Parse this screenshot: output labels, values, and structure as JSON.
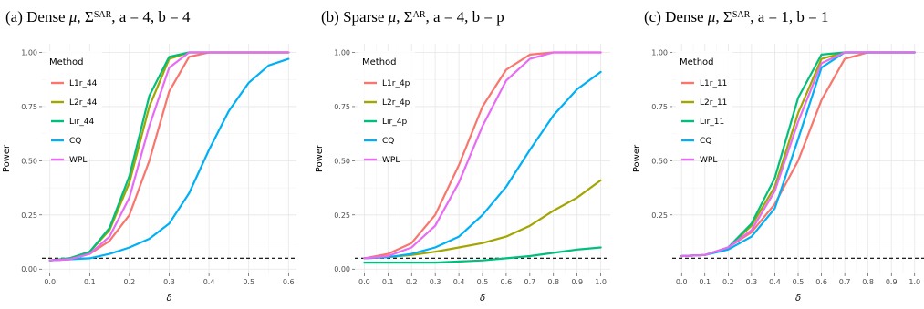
{
  "chart_data": [
    {
      "type": "line",
      "title": "(a) Dense μ, Σ^SAR, a = 4, b = 4",
      "title_parts": {
        "prefix": "(a) Dense ",
        "mu": "μ",
        "comma1": ", ",
        "sigma": "Σ",
        "sup": "SAR",
        "rest": ", a = 4, b = 4"
      },
      "xlabel": "δ",
      "ylabel": "Power",
      "xlim": [
        -0.02,
        0.62
      ],
      "ylim": [
        -0.02,
        1.04
      ],
      "xticks": [
        0.0,
        0.1,
        0.2,
        0.3,
        0.4,
        0.5,
        0.6
      ],
      "xtick_labels": [
        "0.0",
        "0.1",
        "0.2",
        "0.3",
        "0.4",
        "0.5",
        "0.6"
      ],
      "yticks": [
        0.0,
        0.25,
        0.5,
        0.75,
        1.0
      ],
      "ytick_labels": [
        "0.00",
        "0.25",
        "0.50",
        "0.75",
        "1.00"
      ],
      "grid": true,
      "legend_position": "top-left",
      "legend_title": "Method",
      "reference_line": {
        "y": 0.05,
        "style": "dashed"
      },
      "series": [
        {
          "name": "L1r_44",
          "color": "#F8766D",
          "x": [
            0.0,
            0.05,
            0.1,
            0.15,
            0.2,
            0.25,
            0.3,
            0.35,
            0.4,
            0.45,
            0.5,
            0.55,
            0.6
          ],
          "y": [
            0.04,
            0.045,
            0.07,
            0.13,
            0.25,
            0.5,
            0.82,
            0.98,
            1.0,
            1.0,
            1.0,
            1.0,
            1.0
          ]
        },
        {
          "name": "L2r_44",
          "color": "#A3A500",
          "x": [
            0.0,
            0.05,
            0.1,
            0.15,
            0.2,
            0.25,
            0.3,
            0.35,
            0.4,
            0.45,
            0.5,
            0.55,
            0.6
          ],
          "y": [
            0.04,
            0.05,
            0.08,
            0.18,
            0.4,
            0.75,
            0.97,
            1.0,
            1.0,
            1.0,
            1.0,
            1.0,
            1.0
          ]
        },
        {
          "name": "Lir_44",
          "color": "#00BF7D",
          "x": [
            0.0,
            0.05,
            0.1,
            0.15,
            0.2,
            0.25,
            0.3,
            0.35,
            0.4,
            0.45,
            0.5,
            0.55,
            0.6
          ],
          "y": [
            0.04,
            0.05,
            0.08,
            0.19,
            0.43,
            0.8,
            0.98,
            1.0,
            1.0,
            1.0,
            1.0,
            1.0,
            1.0
          ]
        },
        {
          "name": "CQ",
          "color": "#00B0F6",
          "x": [
            0.0,
            0.05,
            0.1,
            0.15,
            0.2,
            0.25,
            0.3,
            0.35,
            0.4,
            0.45,
            0.5,
            0.55,
            0.6
          ],
          "y": [
            0.04,
            0.045,
            0.05,
            0.07,
            0.1,
            0.14,
            0.21,
            0.35,
            0.55,
            0.73,
            0.86,
            0.94,
            0.97
          ]
        },
        {
          "name": "WPL",
          "color": "#E76BF3",
          "x": [
            0.0,
            0.05,
            0.1,
            0.15,
            0.2,
            0.25,
            0.3,
            0.35,
            0.4,
            0.45,
            0.5,
            0.55,
            0.6
          ],
          "y": [
            0.04,
            0.045,
            0.07,
            0.15,
            0.33,
            0.66,
            0.93,
            1.0,
            1.0,
            1.0,
            1.0,
            1.0,
            1.0
          ]
        }
      ]
    },
    {
      "type": "line",
      "title": "(b) Sparse μ, Σ^AR, a = 4, b = p",
      "title_parts": {
        "prefix": "(b) Sparse ",
        "mu": "μ",
        "comma1": ", ",
        "sigma": "Σ",
        "sup": "AR",
        "rest": ", a = 4, b = p"
      },
      "xlabel": "δ",
      "ylabel": "Power",
      "xlim": [
        -0.04,
        1.04
      ],
      "ylim": [
        -0.02,
        1.04
      ],
      "xticks": [
        0.0,
        0.1,
        0.2,
        0.3,
        0.4,
        0.5,
        0.6,
        0.7,
        0.8,
        0.9,
        1.0
      ],
      "xtick_labels": [
        "0.0",
        "0.1",
        "0.2",
        "0.3",
        "0.4",
        "0.5",
        "0.6",
        "0.7",
        "0.8",
        "0.9",
        "1.0"
      ],
      "yticks": [
        0.0,
        0.25,
        0.5,
        0.75,
        1.0
      ],
      "ytick_labels": [
        "0.00",
        "0.25",
        "0.50",
        "0.75",
        "1.00"
      ],
      "grid": true,
      "legend_position": "top-left",
      "legend_title": "Method",
      "reference_line": {
        "y": 0.05,
        "style": "dashed"
      },
      "series": [
        {
          "name": "L1r_4p",
          "color": "#F8766D",
          "x": [
            0.0,
            0.1,
            0.2,
            0.3,
            0.4,
            0.5,
            0.6,
            0.7,
            0.8,
            0.9,
            1.0
          ],
          "y": [
            0.05,
            0.07,
            0.12,
            0.25,
            0.48,
            0.75,
            0.92,
            0.99,
            1.0,
            1.0,
            1.0
          ]
        },
        {
          "name": "L2r_4p",
          "color": "#A3A500",
          "x": [
            0.0,
            0.1,
            0.2,
            0.3,
            0.4,
            0.5,
            0.6,
            0.7,
            0.8,
            0.9,
            1.0
          ],
          "y": [
            0.05,
            0.055,
            0.065,
            0.08,
            0.1,
            0.12,
            0.15,
            0.2,
            0.27,
            0.33,
            0.41
          ]
        },
        {
          "name": "Lir_4p",
          "color": "#00BF7D",
          "x": [
            0.0,
            0.1,
            0.2,
            0.3,
            0.4,
            0.5,
            0.6,
            0.7,
            0.8,
            0.9,
            1.0
          ],
          "y": [
            0.03,
            0.03,
            0.03,
            0.03,
            0.035,
            0.04,
            0.05,
            0.06,
            0.075,
            0.09,
            0.1
          ]
        },
        {
          "name": "CQ",
          "color": "#00B0F6",
          "x": [
            0.0,
            0.1,
            0.2,
            0.3,
            0.4,
            0.5,
            0.6,
            0.7,
            0.8,
            0.9,
            1.0
          ],
          "y": [
            0.05,
            0.055,
            0.07,
            0.1,
            0.15,
            0.25,
            0.38,
            0.55,
            0.71,
            0.83,
            0.91
          ]
        },
        {
          "name": "WPL",
          "color": "#E76BF3",
          "x": [
            0.0,
            0.1,
            0.2,
            0.3,
            0.4,
            0.5,
            0.6,
            0.7,
            0.8,
            0.9,
            1.0
          ],
          "y": [
            0.05,
            0.06,
            0.1,
            0.2,
            0.4,
            0.66,
            0.87,
            0.97,
            1.0,
            1.0,
            1.0
          ]
        }
      ]
    },
    {
      "type": "line",
      "title": "(c) Dense μ, Σ^SAR, a = 1, b = 1",
      "title_parts": {
        "prefix": "(c) Dense ",
        "mu": "μ",
        "comma1": ", ",
        "sigma": "Σ",
        "sup": "SAR",
        "rest": ", a = 1, b = 1"
      },
      "xlabel": "δ",
      "ylabel": "Power",
      "xlim": [
        -0.04,
        1.04
      ],
      "ylim": [
        -0.02,
        1.04
      ],
      "xticks": [
        0.0,
        0.1,
        0.2,
        0.3,
        0.4,
        0.5,
        0.6,
        0.7,
        0.8,
        0.9,
        1.0
      ],
      "xtick_labels": [
        "0.0",
        "0.1",
        "0.2",
        "0.3",
        "0.4",
        "0.5",
        "0.6",
        "0.7",
        "0.8",
        "0.9",
        "1.0"
      ],
      "yticks": [
        0.25,
        0.5,
        0.75,
        1.0
      ],
      "ytick_labels": [
        "0.25",
        "0.50",
        "0.75",
        "1.00"
      ],
      "grid": true,
      "legend_position": "top-left",
      "legend_title": "Method",
      "reference_line": {
        "y": 0.05,
        "style": "dashed"
      },
      "series": [
        {
          "name": "L1r_11",
          "color": "#F8766D",
          "x": [
            0.0,
            0.1,
            0.2,
            0.3,
            0.4,
            0.5,
            0.6,
            0.7,
            0.8,
            0.9,
            1.0
          ],
          "y": [
            0.06,
            0.065,
            0.1,
            0.17,
            0.3,
            0.5,
            0.78,
            0.97,
            1.0,
            1.0,
            1.0
          ]
        },
        {
          "name": "L2r_11",
          "color": "#A3A500",
          "x": [
            0.0,
            0.1,
            0.2,
            0.3,
            0.4,
            0.5,
            0.6,
            0.7,
            0.8,
            0.9,
            1.0
          ],
          "y": [
            0.06,
            0.065,
            0.1,
            0.2,
            0.38,
            0.72,
            0.97,
            1.0,
            1.0,
            1.0,
            1.0
          ]
        },
        {
          "name": "Lir_11",
          "color": "#00BF7D",
          "x": [
            0.0,
            0.1,
            0.2,
            0.3,
            0.4,
            0.5,
            0.6,
            0.7,
            0.8,
            0.9,
            1.0
          ],
          "y": [
            0.06,
            0.065,
            0.1,
            0.21,
            0.42,
            0.79,
            0.99,
            1.0,
            1.0,
            1.0,
            1.0
          ]
        },
        {
          "name": "CQ",
          "color": "#00B0F6",
          "x": [
            0.0,
            0.1,
            0.2,
            0.3,
            0.4,
            0.5,
            0.6,
            0.7,
            0.8,
            0.9,
            1.0
          ],
          "y": [
            0.06,
            0.065,
            0.09,
            0.15,
            0.28,
            0.6,
            0.93,
            1.0,
            1.0,
            1.0,
            1.0
          ]
        },
        {
          "name": "WPL",
          "color": "#E76BF3",
          "x": [
            0.0,
            0.1,
            0.2,
            0.3,
            0.4,
            0.5,
            0.6,
            0.7,
            0.8,
            0.9,
            1.0
          ],
          "y": [
            0.06,
            0.065,
            0.1,
            0.18,
            0.36,
            0.68,
            0.95,
            1.0,
            1.0,
            1.0,
            1.0
          ]
        }
      ]
    }
  ]
}
